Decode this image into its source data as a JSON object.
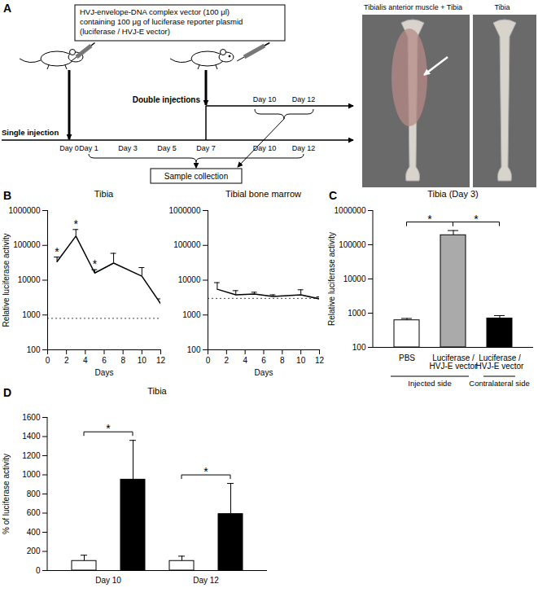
{
  "diagram": {
    "panel": "A",
    "box": [
      "HVJ-envelope-DNA complex vector (100 μl)",
      "containing 100 μg of luciferase reporter plasmid",
      "(luciferase / HVJ-E vector)"
    ],
    "double_label": "Double injections",
    "single_label": "Single injection",
    "single_days": [
      "Day 0",
      "Day 1",
      "Day 3",
      "Day 5",
      "Day 7",
      "Day 10",
      "Day 12"
    ],
    "double_days": [
      "Day 10",
      "Day 12"
    ],
    "collection": "Sample collection",
    "photos": [
      "Tibialis anterior muscle + Tibia",
      "Tibia"
    ]
  },
  "chart_data": [
    {
      "panel": "B",
      "type": "line",
      "title": "Tibia",
      "color": "#000000",
      "x": [
        1,
        3,
        5,
        7,
        10,
        12
      ],
      "values": [
        34000,
        185000,
        16000,
        31000,
        13000,
        2100
      ],
      "errors": [
        12000,
        100000,
        4000,
        28000,
        10000,
        800
      ],
      "reference_line": 800,
      "significance": [
        {
          "x": 1,
          "text": "*"
        },
        {
          "x": 3,
          "text": "*"
        },
        {
          "x": 5,
          "text": "*"
        }
      ],
      "x_label": "Days",
      "y_label": "Relative luciferase activity",
      "xlim": [
        0,
        12
      ],
      "xticks": [
        0,
        2,
        4,
        6,
        8,
        10,
        12
      ],
      "ylim": [
        100,
        1000000
      ],
      "yticks": [
        100,
        1000,
        10000,
        100000,
        1000000
      ],
      "log": "y"
    },
    {
      "type": "line",
      "title": "Tibial bone marrow",
      "color": "#000000",
      "x": [
        1,
        3,
        5,
        7,
        10,
        12
      ],
      "values": [
        5500,
        3800,
        4000,
        3400,
        3800,
        2900
      ],
      "errors": [
        3000,
        1200,
        500,
        400,
        1500,
        400
      ],
      "reference_line": 3000,
      "x_label": "Days",
      "xlim": [
        0,
        12
      ],
      "xticks": [
        0,
        2,
        4,
        6,
        8,
        10,
        12
      ],
      "ylim": [
        100,
        1000000
      ],
      "yticks": [
        100,
        1000,
        10000,
        100000,
        1000000
      ],
      "log": "y"
    },
    {
      "panel": "C",
      "type": "bar",
      "title": "Tibia (Day 3)",
      "categories": [
        "PBS",
        "Luciferase / HVJ-E vector",
        "Luciferase / HVJ-E vector"
      ],
      "values": [
        620,
        190000,
        700
      ],
      "errors": [
        80,
        70000,
        150
      ],
      "colors": [
        "#ffffff",
        "#aaaaaa",
        "#000000"
      ],
      "groups": [
        {
          "label": "Injected side",
          "from": 0,
          "to": 1
        },
        {
          "label": "Contralateral side",
          "from": 2,
          "to": 2
        }
      ],
      "significance": [
        {
          "from": 0,
          "to": 1,
          "text": "*"
        },
        {
          "from": 1,
          "to": 2,
          "text": "*"
        }
      ],
      "y_label": "Relative luciferase activity",
      "ylim": [
        100,
        1000000
      ],
      "yticks": [
        100,
        1000,
        10000,
        100000,
        1000000
      ],
      "log": "y"
    },
    {
      "panel": "D",
      "type": "bar",
      "title": "Tibia",
      "categories": [
        "Day 10",
        "Day 12"
      ],
      "series": [
        {
          "color": "#ffffff",
          "values": [
            100,
            100
          ],
          "errors": [
            60,
            50
          ]
        },
        {
          "color": "#000000",
          "values": [
            950,
            590
          ],
          "errors": [
            410,
            320
          ]
        }
      ],
      "significance": [
        {
          "category": 0,
          "text": "*"
        },
        {
          "category": 1,
          "text": "*"
        }
      ],
      "y_label": "% of luciferase activity",
      "ylim": [
        0,
        1600
      ],
      "yticks": [
        0,
        200,
        400,
        600,
        800,
        1000,
        1200,
        1400,
        1600
      ]
    }
  ]
}
